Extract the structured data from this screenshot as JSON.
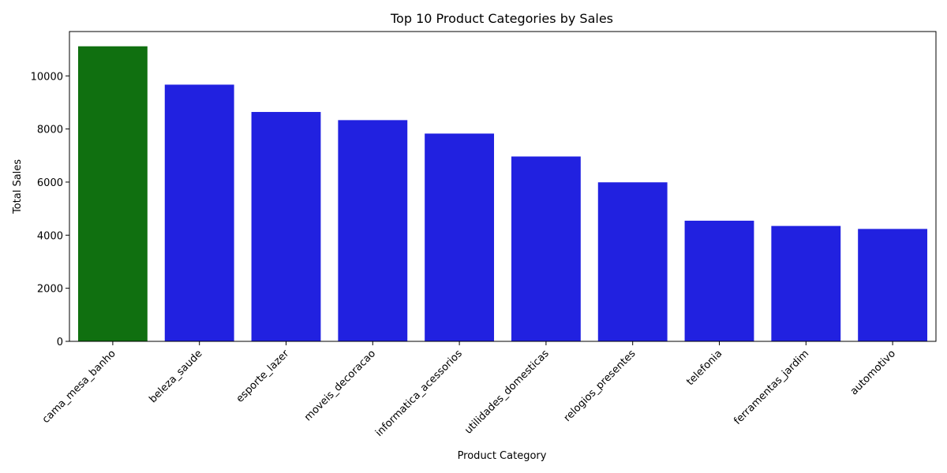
{
  "chart_data": {
    "type": "bar",
    "title": "Top 10 Product Categories by Sales",
    "xlabel": "Product Category",
    "ylabel": "Total Sales",
    "categories": [
      "cama_mesa_banho",
      "beleza_saude",
      "esporte_lazer",
      "moveis_decoracao",
      "informatica_acessorios",
      "utilidades_domesticas",
      "relogios_presentes",
      "telefonia",
      "ferramentas_jardim",
      "automotivo"
    ],
    "values": [
      11115,
      9670,
      8641,
      8334,
      7827,
      6964,
      5991,
      4545,
      4347,
      4235
    ],
    "bar_colors": [
      "#107010",
      "#2121e0",
      "#2121e0",
      "#2121e0",
      "#2121e0",
      "#2121e0",
      "#2121e0",
      "#2121e0",
      "#2121e0",
      "#2121e0"
    ],
    "yticks": [
      0,
      2000,
      4000,
      6000,
      8000,
      10000
    ],
    "ylim": [
      0,
      11671
    ],
    "grid": false,
    "legend": "none"
  }
}
